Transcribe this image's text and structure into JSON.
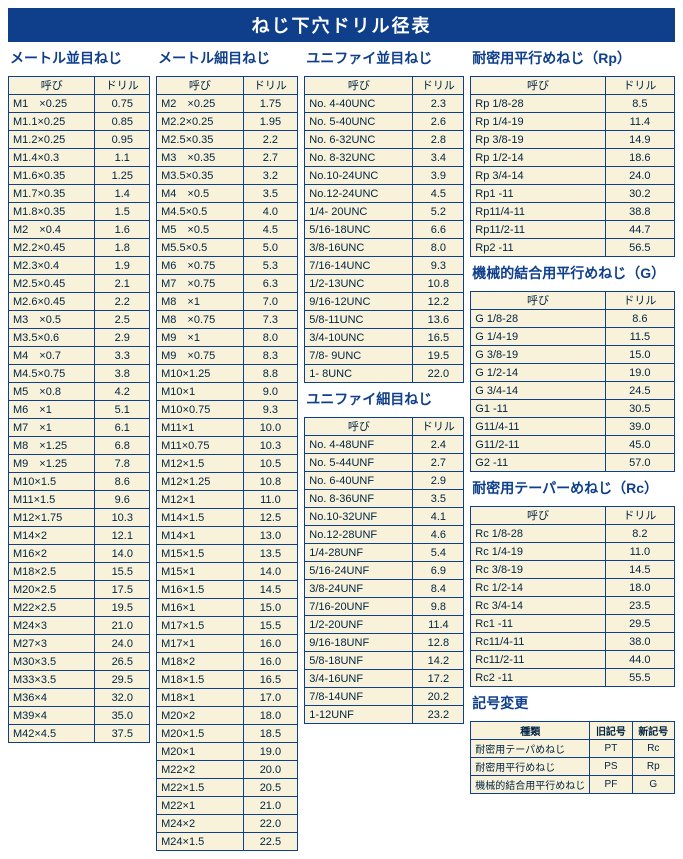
{
  "title": "ねじ下穴ドリル径表",
  "headers": {
    "call": "呼び",
    "drill": "ドリル"
  },
  "sections": {
    "metric_coarse": {
      "title": "メートル並目ねじ",
      "rows": [
        [
          "M1　×0.25",
          "0.75"
        ],
        [
          "M1.1×0.25",
          "0.85"
        ],
        [
          "M1.2×0.25",
          "0.95"
        ],
        [
          "M1.4×0.3",
          "1.1"
        ],
        [
          "M1.6×0.35",
          "1.25"
        ],
        [
          "M1.7×0.35",
          "1.4"
        ],
        [
          "M1.8×0.35",
          "1.5"
        ],
        [
          "M2　×0.4",
          "1.6"
        ],
        [
          "M2.2×0.45",
          "1.8"
        ],
        [
          "M2.3×0.4",
          "1.9"
        ],
        [
          "M2.5×0.45",
          "2.1"
        ],
        [
          "M2.6×0.45",
          "2.2"
        ],
        [
          "M3　×0.5",
          "2.5"
        ],
        [
          "M3.5×0.6",
          "2.9"
        ],
        [
          "M4　×0.7",
          "3.3"
        ],
        [
          "M4.5×0.75",
          "3.8"
        ],
        [
          "M5　×0.8",
          "4.2"
        ],
        [
          "M6　×1",
          "5.1"
        ],
        [
          "M7　×1",
          "6.1"
        ],
        [
          "M8　×1.25",
          "6.8"
        ],
        [
          "M9　×1.25",
          "7.8"
        ],
        [
          "M10×1.5",
          "8.6"
        ],
        [
          "M11×1.5",
          "9.6"
        ],
        [
          "M12×1.75",
          "10.3"
        ],
        [
          "M14×2",
          "12.1"
        ],
        [
          "M16×2",
          "14.0"
        ],
        [
          "M18×2.5",
          "15.5"
        ],
        [
          "M20×2.5",
          "17.5"
        ],
        [
          "M22×2.5",
          "19.5"
        ],
        [
          "M24×3",
          "21.0"
        ],
        [
          "M27×3",
          "24.0"
        ],
        [
          "M30×3.5",
          "26.5"
        ],
        [
          "M33×3.5",
          "29.5"
        ],
        [
          "M36×4",
          "32.0"
        ],
        [
          "M39×4",
          "35.0"
        ],
        [
          "M42×4.5",
          "37.5"
        ]
      ]
    },
    "metric_fine": {
      "title": "メートル細目ねじ",
      "rows": [
        [
          "M2　×0.25",
          "1.75"
        ],
        [
          "M2.2×0.25",
          "1.95"
        ],
        [
          "M2.5×0.35",
          "2.2"
        ],
        [
          "M3　×0.35",
          "2.7"
        ],
        [
          "M3.5×0.35",
          "3.2"
        ],
        [
          "M4　×0.5",
          "3.5"
        ],
        [
          "M4.5×0.5",
          "4.0"
        ],
        [
          "M5　×0.5",
          "4.5"
        ],
        [
          "M5.5×0.5",
          "5.0"
        ],
        [
          "M6　×0.75",
          "5.3"
        ],
        [
          "M7　×0.75",
          "6.3"
        ],
        [
          "M8　×1",
          "7.0"
        ],
        [
          "M8　×0.75",
          "7.3"
        ],
        [
          "M9　×1",
          "8.0"
        ],
        [
          "M9　×0.75",
          "8.3"
        ],
        [
          "M10×1.25",
          "8.8"
        ],
        [
          "M10×1",
          "9.0"
        ],
        [
          "M10×0.75",
          "9.3"
        ],
        [
          "M11×1",
          "10.0"
        ],
        [
          "M11×0.75",
          "10.3"
        ],
        [
          "M12×1.5",
          "10.5"
        ],
        [
          "M12×1.25",
          "10.8"
        ],
        [
          "M12×1",
          "11.0"
        ],
        [
          "M14×1.5",
          "12.5"
        ],
        [
          "M14×1",
          "13.0"
        ],
        [
          "M15×1.5",
          "13.5"
        ],
        [
          "M15×1",
          "14.0"
        ],
        [
          "M16×1.5",
          "14.5"
        ],
        [
          "M16×1",
          "15.0"
        ],
        [
          "M17×1.5",
          "15.5"
        ],
        [
          "M17×1",
          "16.0"
        ],
        [
          "M18×2",
          "16.0"
        ],
        [
          "M18×1.5",
          "16.5"
        ],
        [
          "M18×1",
          "17.0"
        ],
        [
          "M20×2",
          "18.0"
        ],
        [
          "M20×1.5",
          "18.5"
        ],
        [
          "M20×1",
          "19.0"
        ],
        [
          "M22×2",
          "20.0"
        ],
        [
          "M22×1.5",
          "20.5"
        ],
        [
          "M22×1",
          "21.0"
        ],
        [
          "M24×2",
          "22.0"
        ],
        [
          "M24×1.5",
          "22.5"
        ]
      ]
    },
    "unc": {
      "title": "ユニファイ並目ねじ",
      "rows": [
        [
          "No.  4-40UNC",
          "2.3"
        ],
        [
          "No.  5-40UNC",
          "2.6"
        ],
        [
          "No.  6-32UNC",
          "2.8"
        ],
        [
          "No.  8-32UNC",
          "3.4"
        ],
        [
          "No.10-24UNC",
          "3.9"
        ],
        [
          "No.12-24UNC",
          "4.5"
        ],
        [
          "  1/4- 20UNC",
          "5.2"
        ],
        [
          " 5/16-18UNC",
          "6.6"
        ],
        [
          "  3/8-16UNC",
          "8.0"
        ],
        [
          " 7/16-14UNC",
          "9.3"
        ],
        [
          "  1/2-13UNC",
          "10.8"
        ],
        [
          " 9/16-12UNC",
          "12.2"
        ],
        [
          "  5/8-11UNC",
          "13.6"
        ],
        [
          "  3/4-10UNC",
          "16.5"
        ],
        [
          "  7/8-  9UNC",
          "19.5"
        ],
        [
          "  1-    8UNC",
          "22.0"
        ]
      ]
    },
    "unf": {
      "title": "ユニファイ細目ねじ",
      "rows": [
        [
          "No.  4-48UNF",
          "2.4"
        ],
        [
          "No.  5-44UNF",
          "2.7"
        ],
        [
          "No.  6-40UNF",
          "2.9"
        ],
        [
          "No.  8-36UNF",
          "3.5"
        ],
        [
          "No.10-32UNF",
          "4.1"
        ],
        [
          "No.12-28UNF",
          "4.6"
        ],
        [
          "  1/4-28UNF",
          "5.4"
        ],
        [
          " 5/16-24UNF",
          "6.9"
        ],
        [
          "  3/8-24UNF",
          "8.4"
        ],
        [
          " 7/16-20UNF",
          "9.8"
        ],
        [
          "  1/2-20UNF",
          "11.4"
        ],
        [
          " 9/16-18UNF",
          "12.8"
        ],
        [
          "  5/8-18UNF",
          "14.2"
        ],
        [
          "  3/4-16UNF",
          "17.2"
        ],
        [
          "  7/8-14UNF",
          "20.2"
        ],
        [
          "  1-12UNF",
          "23.2"
        ]
      ]
    },
    "rp": {
      "title": "耐密用平行めねじ（Rp）",
      "rows": [
        [
          "Rp   1/8-28",
          "8.5"
        ],
        [
          "Rp   1/4-19",
          "11.4"
        ],
        [
          "Rp   3/8-19",
          "14.9"
        ],
        [
          "Rp   1/2-14",
          "18.6"
        ],
        [
          "Rp   3/4-14",
          "24.0"
        ],
        [
          "Rp1    -11",
          "30.2"
        ],
        [
          "Rp11/4-11",
          "38.8"
        ],
        [
          "Rp11/2-11",
          "44.7"
        ],
        [
          "Rp2    -11",
          "56.5"
        ]
      ]
    },
    "g": {
      "title": "機械的結合用平行めねじ（G）",
      "rows": [
        [
          "G   1/8-28",
          "8.6"
        ],
        [
          "G   1/4-19",
          "11.5"
        ],
        [
          "G   3/8-19",
          "15.0"
        ],
        [
          "G   1/2-14",
          "19.0"
        ],
        [
          "G   3/4-14",
          "24.5"
        ],
        [
          "G1    -11",
          "30.5"
        ],
        [
          "G11/4-11",
          "39.0"
        ],
        [
          "G11/2-11",
          "45.0"
        ],
        [
          "G2    -11",
          "57.0"
        ]
      ]
    },
    "rc": {
      "title": "耐密用テーパーめねじ（Rc）",
      "rows": [
        [
          "Rc   1/8-28",
          "8.2"
        ],
        [
          "Rc   1/4-19",
          "11.0"
        ],
        [
          "Rc   3/8-19",
          "14.5"
        ],
        [
          "Rc   1/2-14",
          "18.0"
        ],
        [
          "Rc   3/4-14",
          "23.5"
        ],
        [
          "Rc1    -11",
          "29.5"
        ],
        [
          "Rc11/4-11",
          "38.0"
        ],
        [
          "Rc11/2-11",
          "44.0"
        ],
        [
          "Rc2    -11",
          "55.5"
        ]
      ]
    }
  },
  "symbol_change": {
    "title": "記号変更",
    "headers": {
      "kind": "種類",
      "old": "旧記号",
      "new": "新記号"
    },
    "rows": [
      [
        "耐密用テーパめねじ",
        "PT",
        "Rc"
      ],
      [
        "耐密用平行めねじ",
        "PS",
        "Rp"
      ],
      [
        "機械的結合用平行めねじ",
        "PF",
        "G"
      ]
    ]
  },
  "style": {
    "title_bg": "#0f3f8a",
    "cell_bg": "#f7f2d9",
    "border": "#0f3f8a"
  }
}
